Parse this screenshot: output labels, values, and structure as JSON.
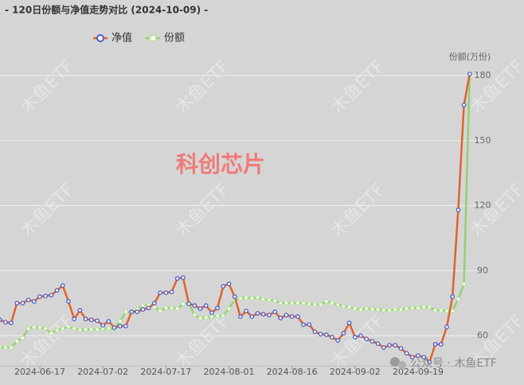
{
  "chart_data": {
    "type": "line",
    "title": "- 120日份额与净值走势对比 (2024-10-09) -",
    "annotation": "科创芯片",
    "watermark": "木鱼ETF",
    "footer": "公众号 · 木鱼ETF",
    "y_label": "份额(万份)",
    "ylim": [
      46,
      182
    ],
    "yticks": [
      60,
      90,
      120,
      150,
      180
    ],
    "grid": true,
    "categories": [
      null,
      null,
      null,
      null,
      null,
      null,
      null,
      "2024-06-17",
      null,
      null,
      null,
      null,
      null,
      null,
      null,
      null,
      null,
      null,
      "2024-07-02",
      null,
      null,
      null,
      null,
      null,
      null,
      null,
      null,
      null,
      null,
      "2024-07-17",
      null,
      null,
      null,
      null,
      null,
      null,
      null,
      null,
      null,
      null,
      "2024-08-01",
      null,
      null,
      null,
      null,
      null,
      null,
      null,
      null,
      null,
      null,
      "2024-08-16",
      null,
      null,
      null,
      null,
      null,
      null,
      null,
      null,
      null,
      null,
      "2024-09-02",
      null,
      null,
      null,
      null,
      null,
      null,
      null,
      null,
      null,
      null,
      "2024-09-19",
      null,
      null,
      null,
      null,
      null,
      null,
      null,
      null,
      null
    ],
    "series": [
      {
        "name": "净值",
        "color": "#e0622e",
        "marker_color": "#4a5cc8",
        "values": [
          67.3,
          66.2,
          65.9,
          75,
          75,
          76.5,
          75.8,
          78,
          78.3,
          78.7,
          80.9,
          83.1,
          75.8,
          67.7,
          71.7,
          67.7,
          67.3,
          66.9,
          64.8,
          66.6,
          63.7,
          64.4,
          64.4,
          71,
          71,
          72.1,
          72.8,
          75,
          79.8,
          79.8,
          80.2,
          86.4,
          86.8,
          74.7,
          73.9,
          72.5,
          73.9,
          70.6,
          72.8,
          82.8,
          83.9,
          78,
          68.8,
          71.4,
          68.8,
          70.3,
          69.9,
          69.5,
          71,
          68.1,
          69.5,
          68.8,
          68.8,
          65.1,
          65.1,
          61.8,
          60.7,
          60.4,
          59.3,
          57.8,
          61.1,
          65.9,
          59.3,
          60,
          58.5,
          57.4,
          56.3,
          54.5,
          55.6,
          55.6,
          54.1,
          51.9,
          50.1,
          50.8,
          50.1,
          47.9,
          56,
          56,
          64,
          78,
          118,
          166.4,
          180.7
        ]
      },
      {
        "name": "份额",
        "color": "#93d16e",
        "marker_color": "#b9e39d",
        "values": [
          54.9,
          54.5,
          54.5,
          57.4,
          58.9,
          63.3,
          64,
          63.7,
          63.3,
          61.1,
          62.6,
          63.3,
          64,
          63.3,
          62.6,
          62.9,
          62.9,
          62.9,
          63.3,
          63.3,
          63.3,
          66.6,
          71,
          70.6,
          72.1,
          73.9,
          74.3,
          73.2,
          71.4,
          72.8,
          72.8,
          72.5,
          74.7,
          75,
          69.5,
          68.1,
          68.4,
          68.8,
          69.2,
          69.2,
          72.5,
          76.5,
          77.2,
          77.6,
          77.2,
          77.6,
          76.9,
          76.5,
          76.1,
          75,
          75,
          75,
          75,
          75,
          74.7,
          74.3,
          74.3,
          75.8,
          75,
          74.3,
          73.6,
          73.2,
          72.5,
          72.1,
          72.5,
          72.1,
          72.1,
          71.7,
          71.7,
          72.1,
          72.1,
          72.5,
          72.8,
          72.8,
          73.2,
          73.2,
          71.7,
          71.7,
          71.4,
          71.4,
          76.9,
          83.9,
          180.7
        ]
      }
    ]
  }
}
